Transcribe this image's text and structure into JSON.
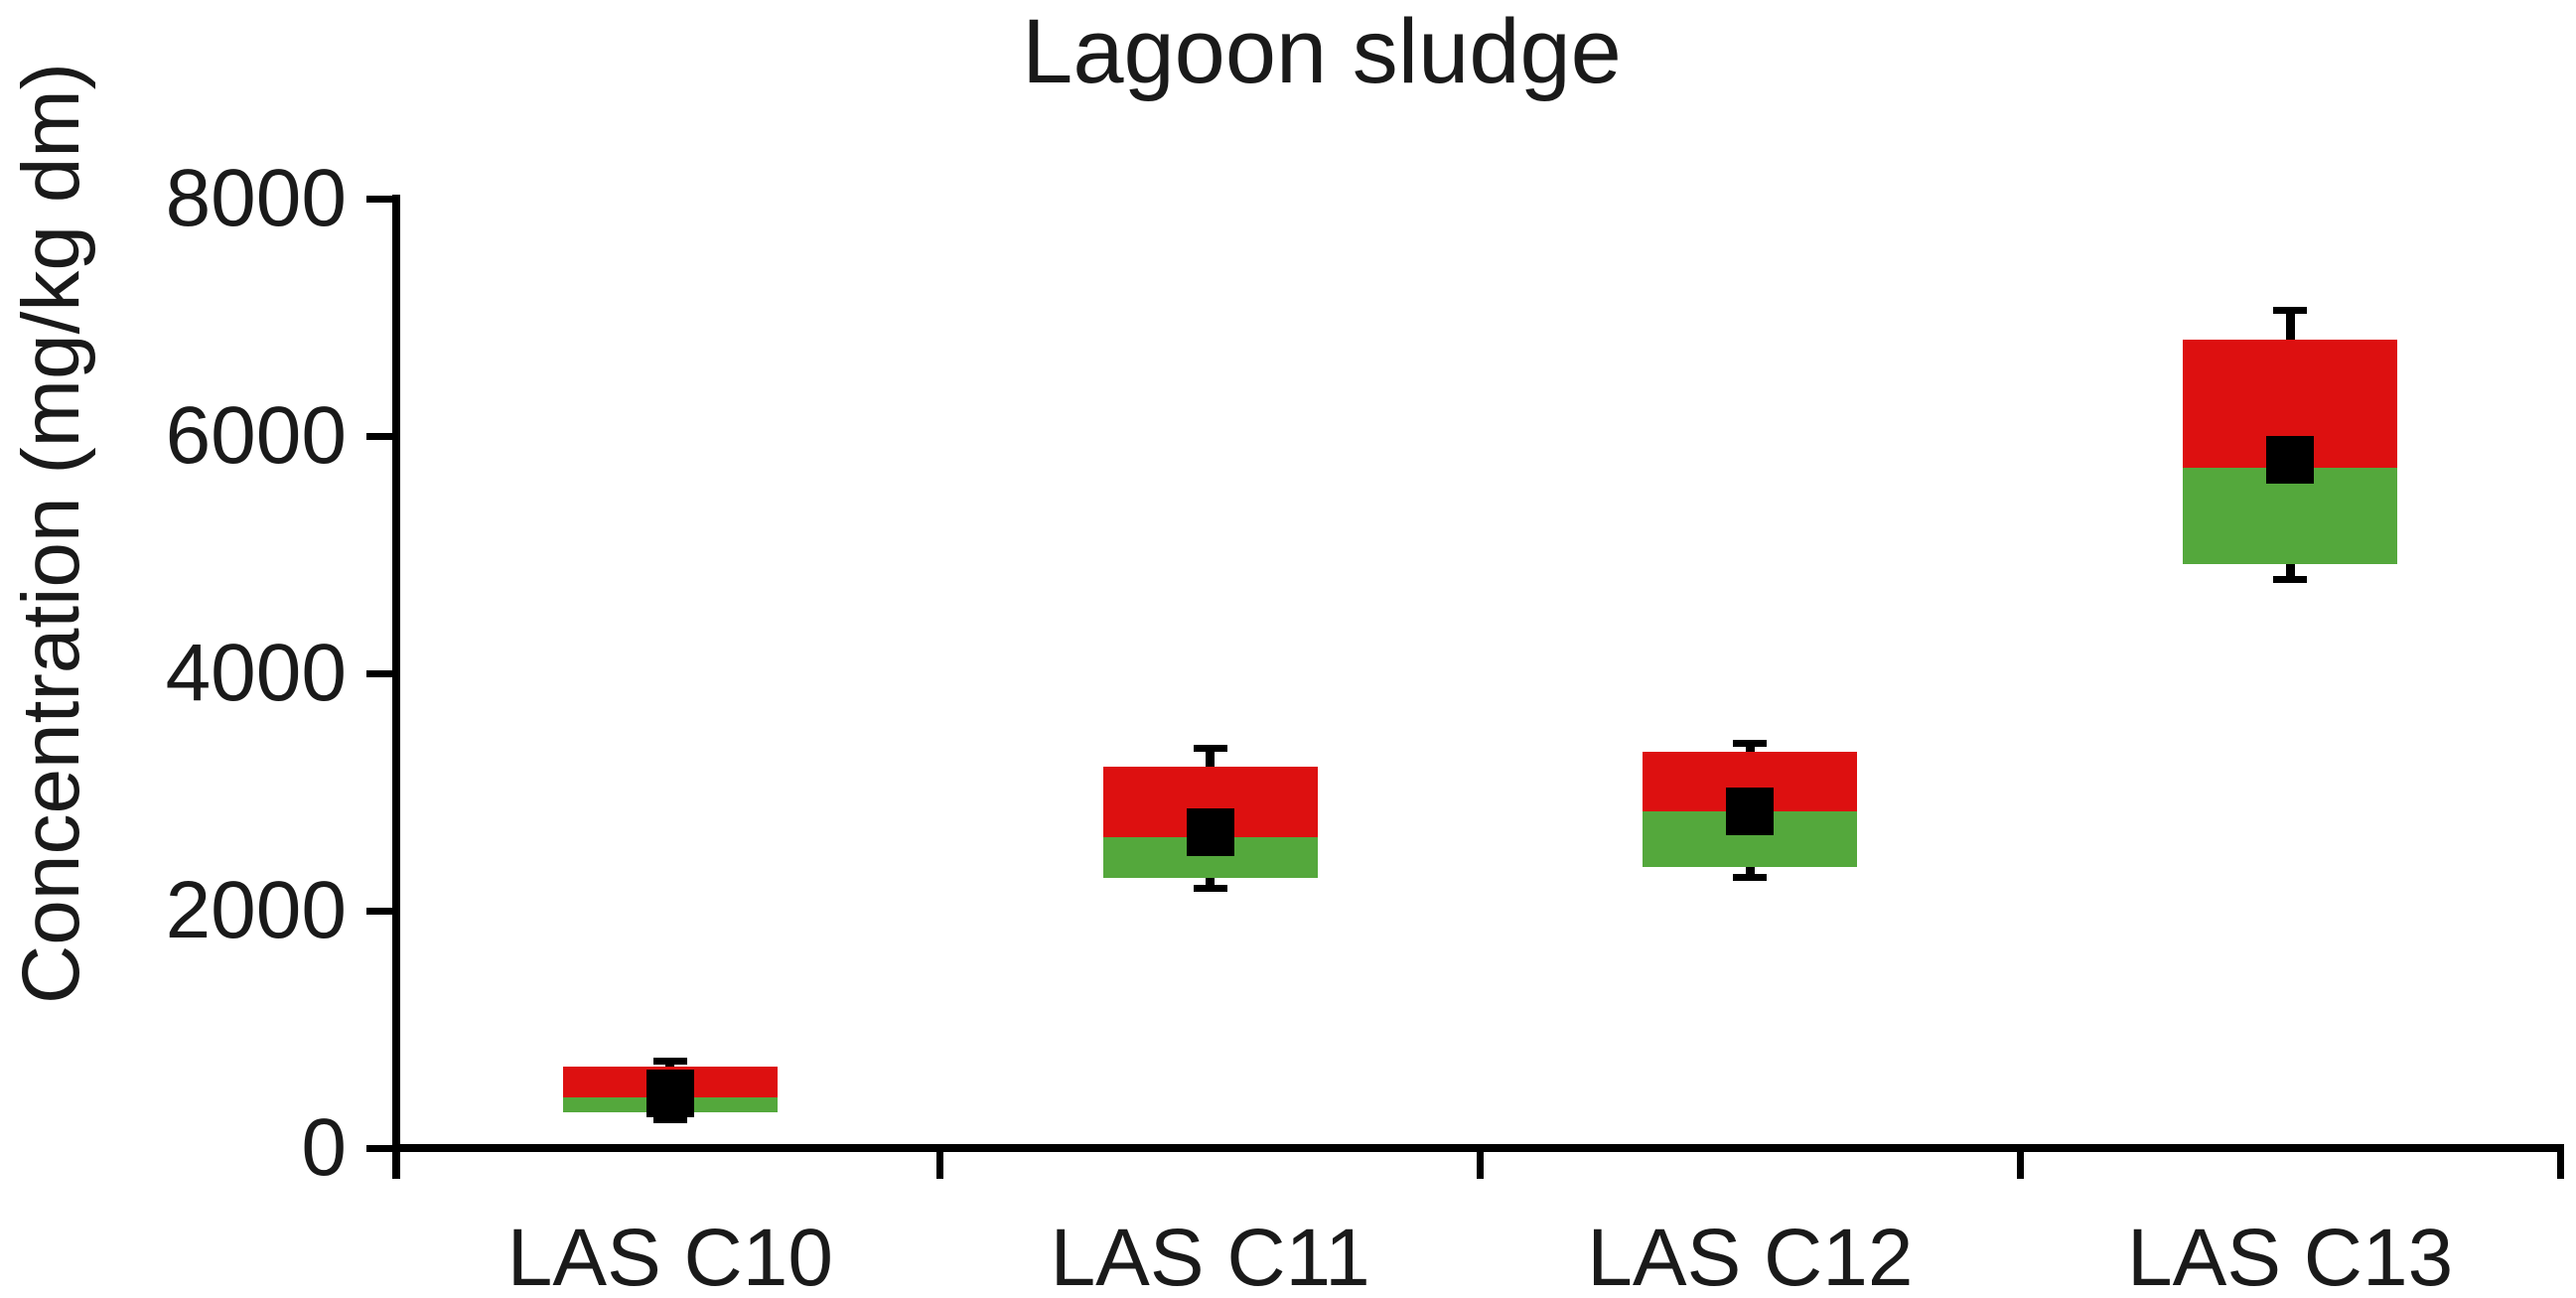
{
  "chart_data": {
    "type": "box",
    "title": "Lagoon sludge",
    "ylabel": "Concentration (mg/kg dm)",
    "xlabel": "",
    "ylim": [
      0,
      8000
    ],
    "yticks": [
      0,
      2000,
      4000,
      6000,
      8000
    ],
    "ytick_labels": [
      "0",
      "2000",
      "4000",
      "6000",
      "8000"
    ],
    "categories": [
      "LAS C10",
      "LAS C11",
      "LAS C12",
      "LAS C13"
    ],
    "grid": false,
    "legend": false,
    "colors": {
      "box_lower_segment": "#54a83c",
      "box_upper_segment": "#dd1010",
      "mean_marker": "#000000",
      "axis": "#000000",
      "text": "#1a1a1a"
    },
    "boxes": [
      {
        "category": "LAS C10",
        "box_low": 300,
        "box_mid": 430,
        "box_high": 690,
        "whisker_low": 240,
        "whisker_high": 730,
        "mean": 460
      },
      {
        "category": "LAS C11",
        "box_low": 2280,
        "box_mid": 2620,
        "box_high": 3210,
        "whisker_low": 2190,
        "whisker_high": 3370,
        "mean": 2660
      },
      {
        "category": "LAS C12",
        "box_low": 2370,
        "box_mid": 2840,
        "box_high": 3340,
        "whisker_low": 2280,
        "whisker_high": 3410,
        "mean": 2840
      },
      {
        "category": "LAS C13",
        "box_low": 4920,
        "box_mid": 5730,
        "box_high": 6810,
        "whisker_low": 4790,
        "whisker_high": 7060,
        "mean": 5800
      }
    ]
  }
}
